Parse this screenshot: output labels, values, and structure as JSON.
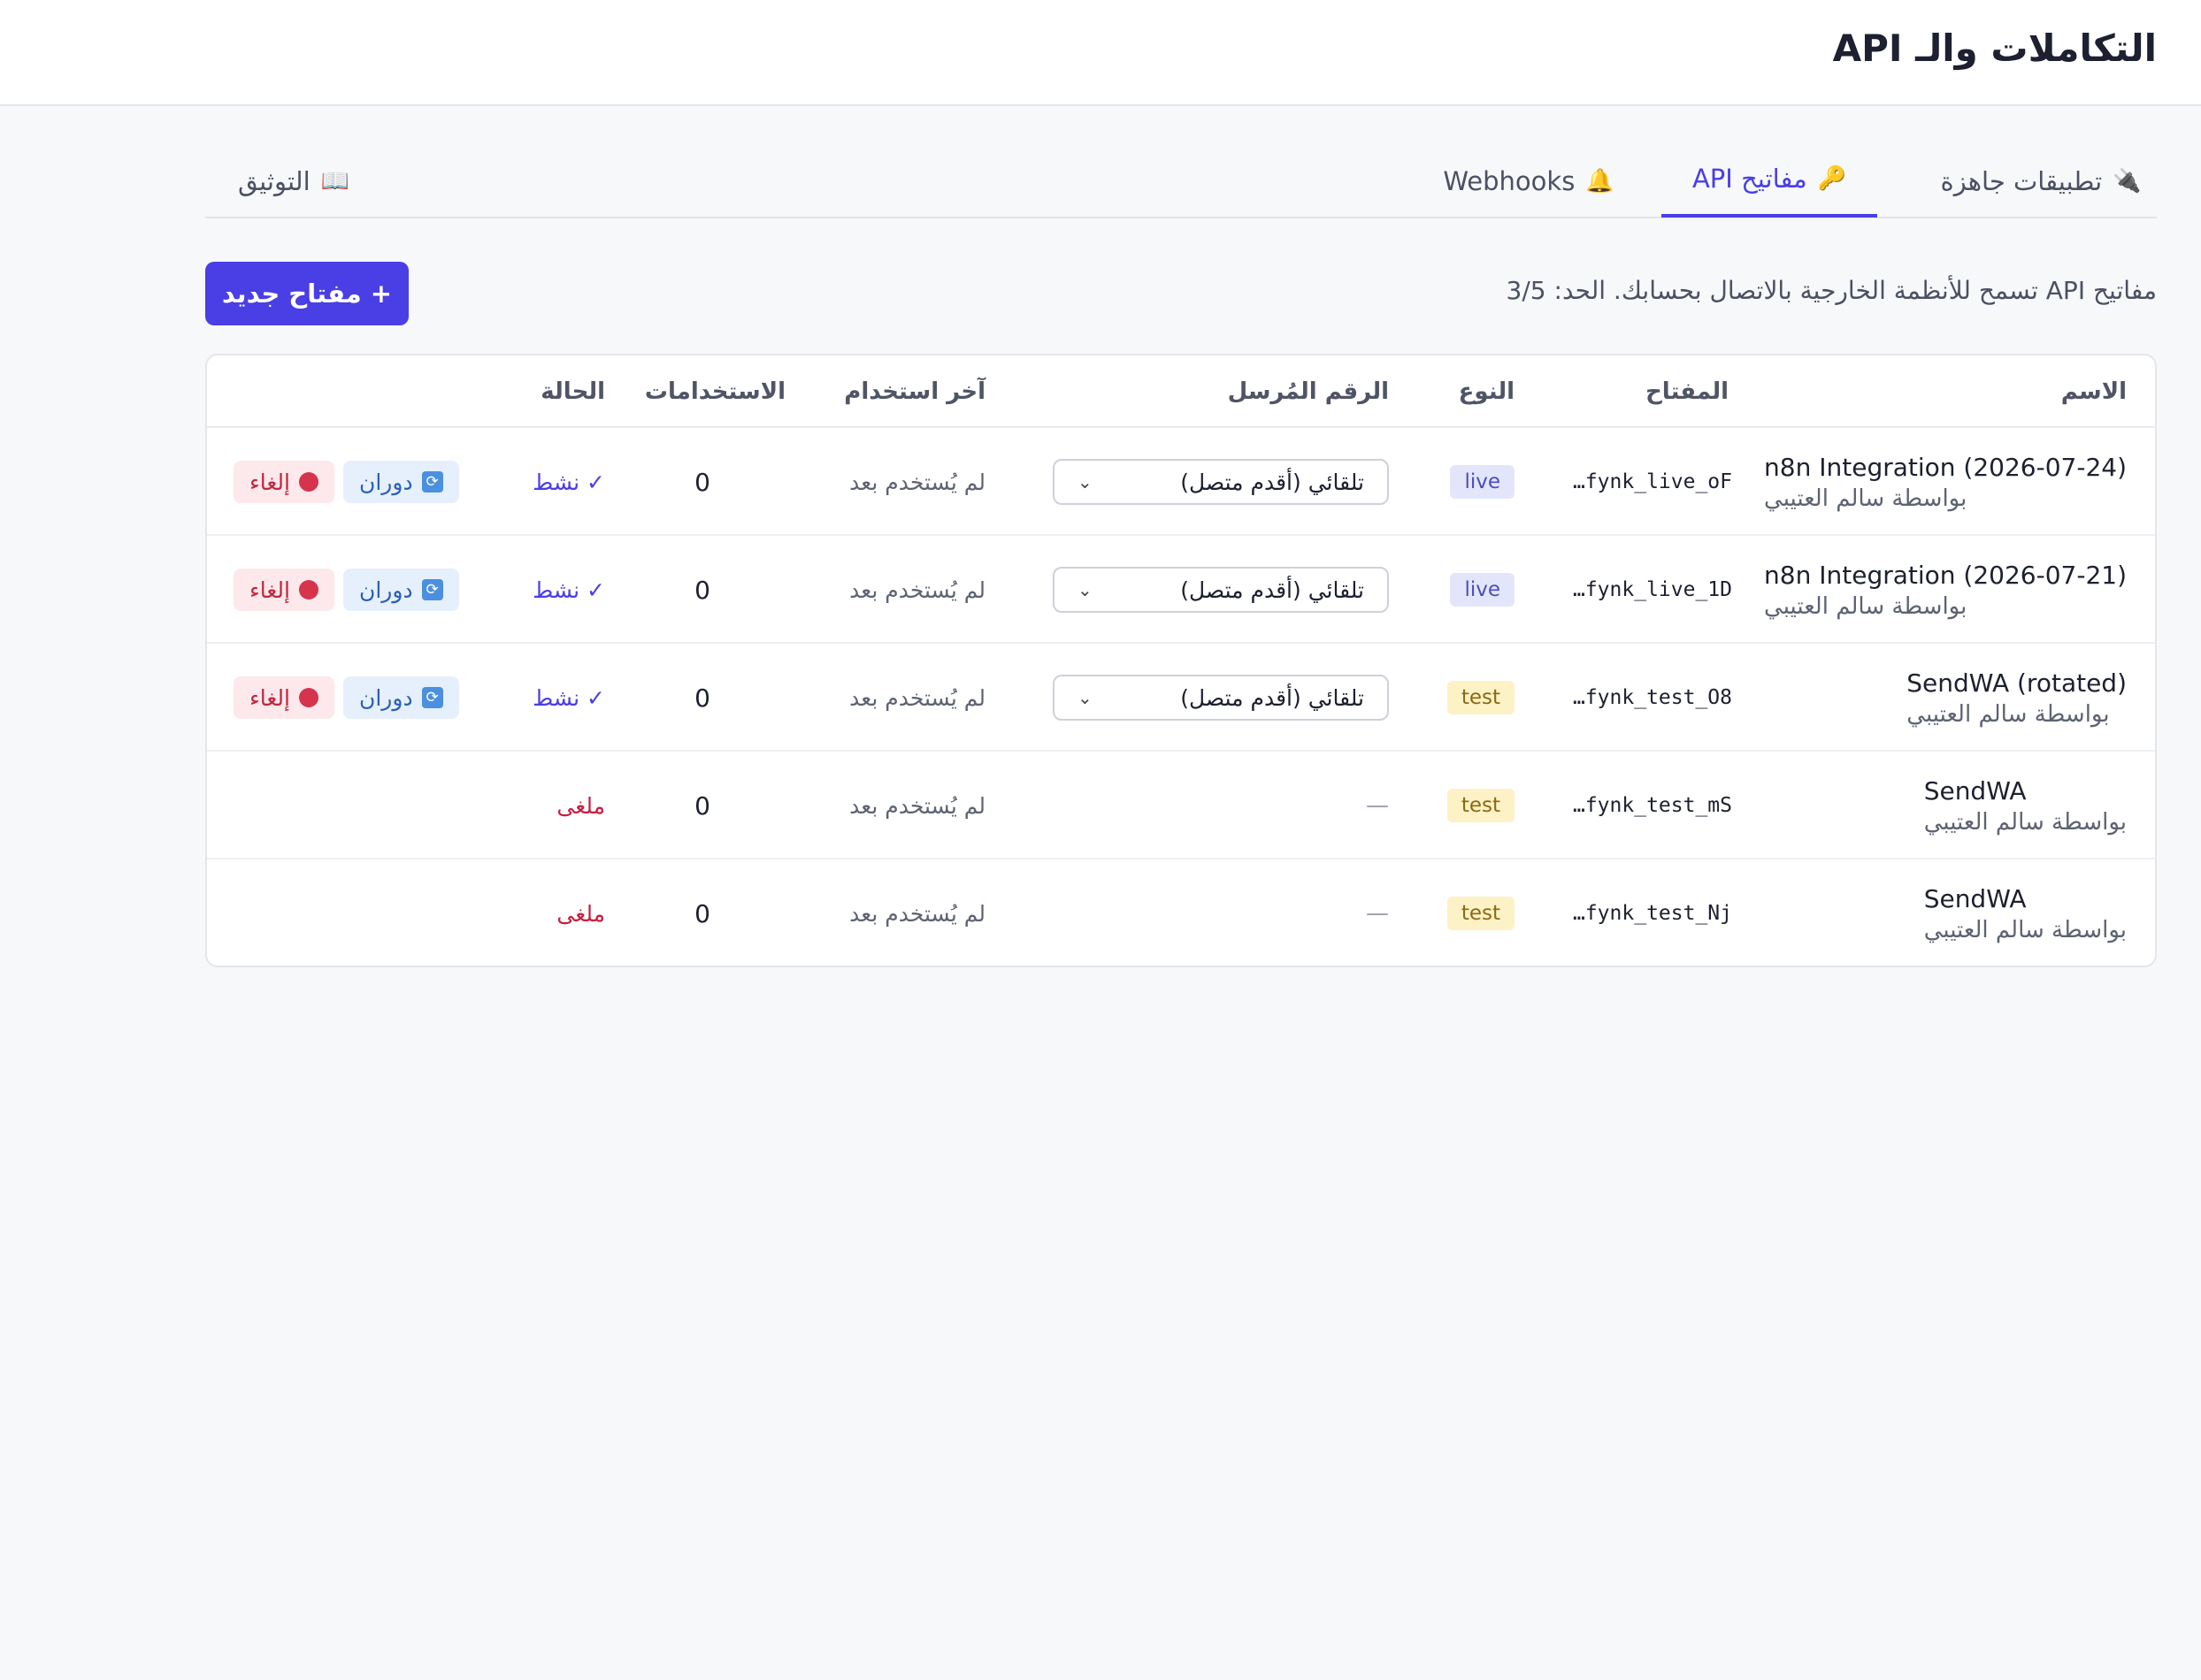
{
  "page": {
    "title": "التكاملات والـ API"
  },
  "tabs": [
    {
      "icon": "🔌",
      "label": "تطبيقات جاهزة",
      "active": false
    },
    {
      "icon": "🔑",
      "label": "مفاتيح API",
      "active": true
    },
    {
      "icon": "🔔",
      "label": "Webhooks",
      "active": false
    },
    {
      "icon": "📖",
      "label": "التوثيق",
      "active": false
    }
  ],
  "description": "مفاتيح API تسمح للأنظمة الخارجية بالاتصال بحسابك. الحد: 3/5",
  "new_key_button": {
    "plus": "+",
    "label": "مفتاح جديد"
  },
  "table": {
    "headers": {
      "name": "الاسم",
      "key": "المفتاح",
      "type": "النوع",
      "sender": "الرقم المُرسل",
      "last_used": "آخر استخدام",
      "uses": "الاستخدامات",
      "status": "الحالة"
    },
    "rows": [
      {
        "name": "n8n Integration (2026-07-24)",
        "by": "بواسطة سالم العتيبي",
        "key": "fynk_live_oF…",
        "type": "live",
        "sender": "تلقائي (أقدم متصل)",
        "last_used": "لم يُستخدم بعد",
        "uses": "0",
        "status": "✓ نشط",
        "state": "active"
      },
      {
        "name": "n8n Integration (2026-07-21)",
        "by": "بواسطة سالم العتيبي",
        "key": "fynk_live_1D…",
        "type": "live",
        "sender": "تلقائي (أقدم متصل)",
        "last_used": "لم يُستخدم بعد",
        "uses": "0",
        "status": "✓ نشط",
        "state": "active"
      },
      {
        "name": "SendWA (rotated)",
        "by": "بواسطة سالم العتيبي",
        "key": "fynk_test_O8…",
        "type": "test",
        "sender": "تلقائي (أقدم متصل)",
        "last_used": "لم يُستخدم بعد",
        "uses": "0",
        "status": "✓ نشط",
        "state": "active"
      },
      {
        "name": "SendWA",
        "by": "بواسطة سالم العتيبي",
        "key": "fynk_test_mS…",
        "type": "test",
        "sender": "—",
        "last_used": "لم يُستخدم بعد",
        "uses": "0",
        "status": "ملغى",
        "state": "cancelled"
      },
      {
        "name": "SendWA",
        "by": "بواسطة سالم العتيبي",
        "key": "fynk_test_Nj…",
        "type": "test",
        "sender": "—",
        "last_used": "لم يُستخدم بعد",
        "uses": "0",
        "status": "ملغى",
        "state": "cancelled"
      }
    ],
    "actions": {
      "rotate_icon": "🔄",
      "rotate": "دوران",
      "cancel_icon": "🛑",
      "cancel": "إلغاء"
    }
  },
  "colors": {
    "accent": "#4a3ee5",
    "danger": "#c81e40",
    "background": "#f7f8fa"
  }
}
